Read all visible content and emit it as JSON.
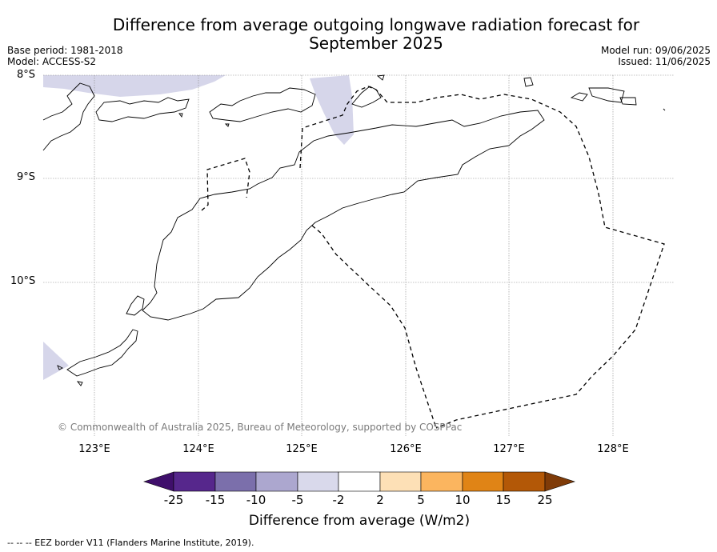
{
  "title": {
    "line1": "Difference from average outgoing longwave radiation forecast for",
    "line2": "September 2025"
  },
  "meta": {
    "base_period": "Base period: 1981-2018",
    "model": "Model: ACCESS-S2",
    "model_run": "Model run: 09/06/2025",
    "issued": "Issued: 11/06/2025"
  },
  "map": {
    "lat_labels": [
      "8°S",
      "9°S",
      "10°S"
    ],
    "lon_labels": [
      "123°E",
      "124°E",
      "125°E",
      "126°E",
      "127°E",
      "128°E"
    ],
    "copyright": "© Commonwealth of Australia 2025, Bureau of Meteorology, supported by COSPPac",
    "anomaly_fill_color": "#d6d6ea",
    "eez_line_style": "dashed",
    "grid": true
  },
  "colorbar": {
    "ticks": [
      "-25",
      "-15",
      "-10",
      "-5",
      "-2",
      "2",
      "5",
      "10",
      "15",
      "25"
    ],
    "colors": [
      "#3f0f6b",
      "#56278c",
      "#7b6fab",
      "#aca7cf",
      "#d9d9eb",
      "#ffffff",
      "#fde0b6",
      "#fbb55f",
      "#e08416",
      "#b35807",
      "#7f3b08"
    ],
    "label": "Difference from average (W/m2)"
  },
  "footer": {
    "eez_note": "--  --  -- EEZ border V11 (Flanders Marine Institute, 2019)."
  }
}
